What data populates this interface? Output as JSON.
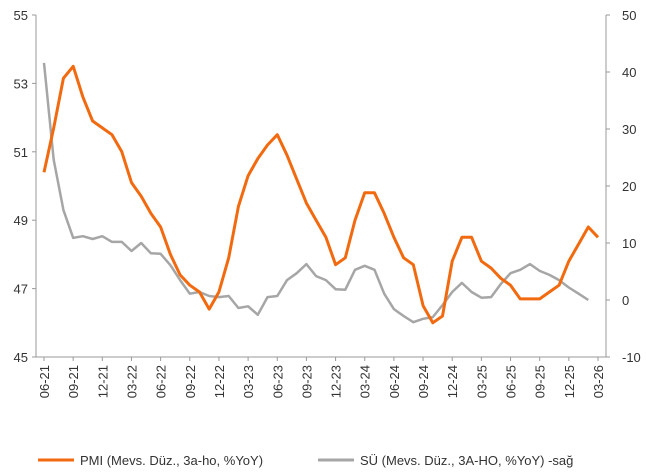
{
  "chart_data": {
    "type": "line",
    "categories": [
      "06-21",
      null,
      null,
      "09-21",
      null,
      null,
      "12-21",
      null,
      null,
      "03-22",
      null,
      null,
      "06-22",
      null,
      null,
      "09-22",
      null,
      null,
      "12-22",
      null,
      null,
      "03-23",
      null,
      null,
      "06-23",
      null,
      null,
      "09-23",
      null,
      null,
      "12-23",
      null,
      null,
      "03-24",
      null,
      null,
      "06-24",
      null,
      null,
      "09-24",
      null,
      null,
      "12-24",
      null,
      null,
      "03-25",
      null,
      null,
      "06-25",
      null,
      null,
      "09-25",
      null,
      null,
      "12-25",
      null,
      null,
      "03-26"
    ],
    "series": [
      {
        "name": "PMI (Mevs. Düz., 3a-ho, %YoY)",
        "color": "#f26a10",
        "axis": "y",
        "values": [
          50.4,
          51.7,
          53.15,
          53.5,
          52.6,
          51.9,
          51.7,
          51.5,
          51.0,
          50.1,
          49.7,
          49.2,
          48.8,
          48.0,
          47.4,
          47.1,
          46.9,
          46.4,
          46.9,
          47.9,
          49.4,
          50.3,
          50.8,
          51.2,
          51.5,
          50.9,
          50.2,
          49.5,
          49.0,
          48.5,
          47.7,
          47.9,
          49.0,
          49.8,
          49.8,
          49.2,
          48.5,
          47.9,
          47.7,
          46.5,
          46.0,
          46.2,
          47.8,
          48.5,
          48.5,
          47.8,
          47.6,
          47.3,
          47.1,
          46.7,
          46.7,
          46.7,
          46.9,
          47.1,
          47.8,
          48.3,
          48.8,
          48.5
        ]
      },
      {
        "name": "SÜ (Mevs. Düz., 3A-HO, %YoY) -sağ",
        "color": "#a6a6a6",
        "axis": "y2",
        "values": [
          41.6,
          24.6,
          15.8,
          10.9,
          11.2,
          10.7,
          11.2,
          10.2,
          10.2,
          8.6,
          10.0,
          8.2,
          8.1,
          6.1,
          3.5,
          1.1,
          1.4,
          0.7,
          0.5,
          0.7,
          -1.4,
          -1.1,
          -2.6,
          0.5,
          0.7,
          3.5,
          4.7,
          6.3,
          4.2,
          3.5,
          1.9,
          1.8,
          5.3,
          6.0,
          5.3,
          1.1,
          -1.6,
          -2.8,
          -3.9,
          -3.3,
          -3.0,
          -0.9,
          1.4,
          3.0,
          1.4,
          0.4,
          0.5,
          2.8,
          4.7,
          5.3,
          6.3,
          5.1,
          4.4,
          3.5,
          2.2,
          1.1,
          0.0,
          null
        ]
      }
    ],
    "ylim": [
      45,
      55
    ],
    "yticks": [
      45,
      47,
      49,
      51,
      53,
      55
    ],
    "y2lim": [
      -10,
      50
    ],
    "y2ticks": [
      -10,
      0,
      10,
      20,
      30,
      40,
      50
    ]
  }
}
